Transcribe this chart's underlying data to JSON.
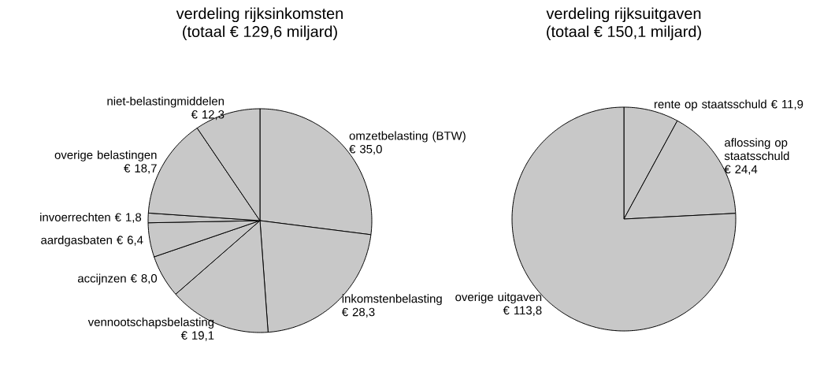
{
  "chart_data": [
    {
      "type": "pie",
      "title": "verdeling rijksinkomsten",
      "subtitle": "(totaal € 129,6 miljard)",
      "categories": [
        "omzetbelasting (BTW)",
        "inkomstenbelasting",
        "vennootschapsbelasting",
        "accijnzen",
        "aardgasbaten",
        "invoerrechten",
        "overige belastingen",
        "niet-belastingmiddelen"
      ],
      "values": [
        35.0,
        28.3,
        19.1,
        8.0,
        6.4,
        1.8,
        18.7,
        12.3
      ],
      "value_labels": [
        "€ 35,0",
        "€ 28,3",
        "€ 19,1",
        "€ 8,0",
        "€ 6,4",
        "€ 1,8",
        "€ 18,7",
        "€ 12,3"
      ],
      "colors": [
        "#c8c8c8",
        "#c8c8c8",
        "#c8c8c8",
        "#c8c8c8",
        "#c8c8c8",
        "#c8c8c8",
        "#c8c8c8",
        "#c8c8c8"
      ]
    },
    {
      "type": "pie",
      "title": "verdeling rijksuitgaven",
      "subtitle": "(totaal € 150,1 miljard)",
      "categories": [
        "rente op staatsschuld",
        "aflossing op staatsschuld",
        "overige uitgaven"
      ],
      "values": [
        11.9,
        24.4,
        113.8
      ],
      "value_labels": [
        "€ 11,9",
        "€ 24,4",
        "€ 113,8"
      ],
      "colors": [
        "#c8c8c8",
        "#c8c8c8",
        "#c8c8c8"
      ]
    }
  ]
}
